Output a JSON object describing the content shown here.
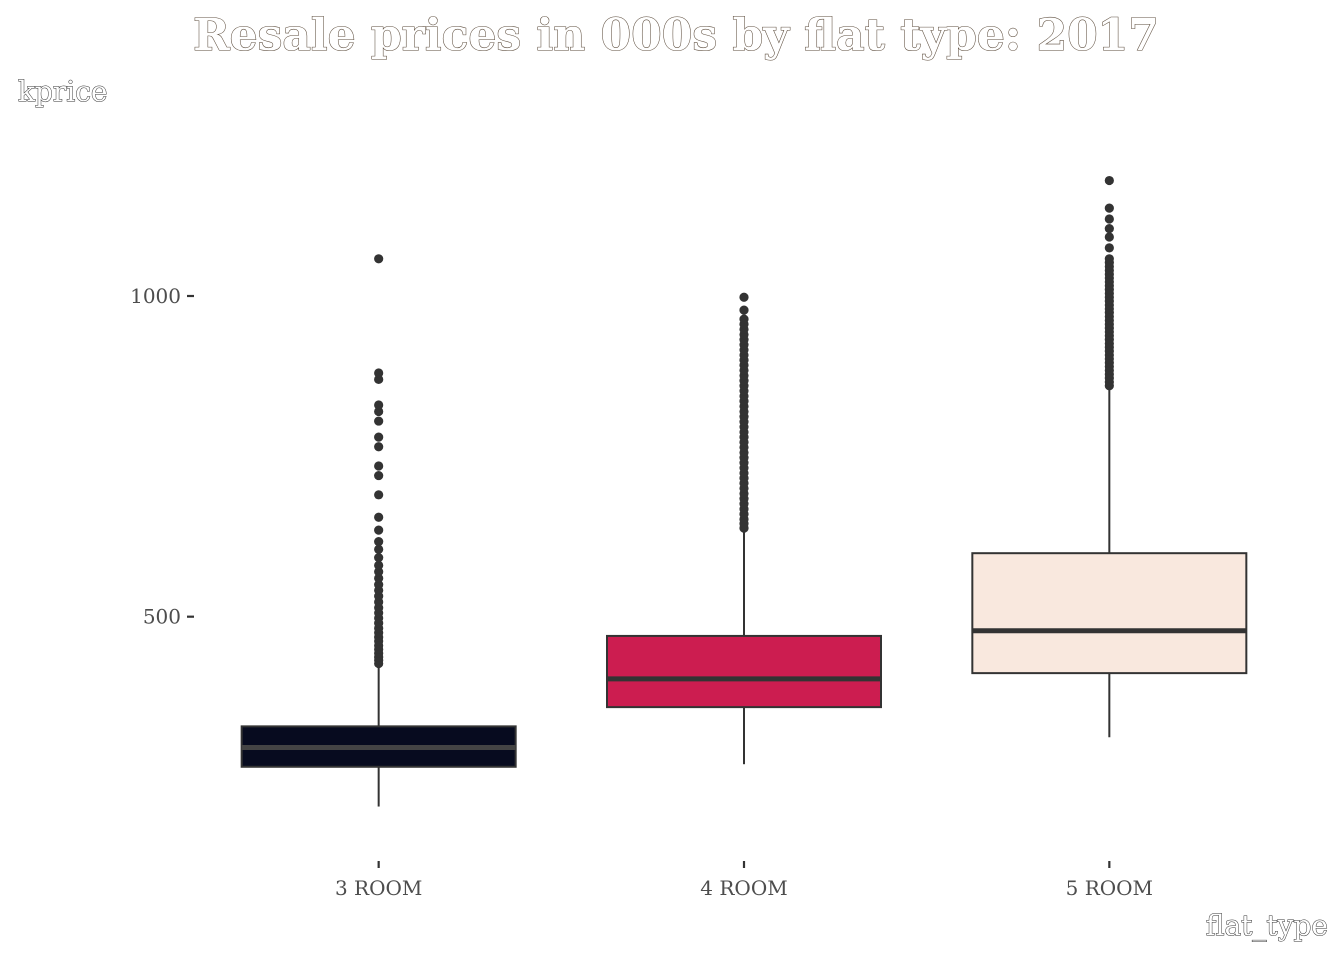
{
  "chart_data": {
    "type": "box",
    "title": "Resale prices in 000s by flat type: 2017",
    "xlabel": "flat_type",
    "ylabel": "kprice",
    "ylim": [
      130,
      1290
    ],
    "yticks": [
      500,
      1000
    ],
    "ytick_labels": [
      "500",
      "1000"
    ],
    "grid": false,
    "legend": "none",
    "categories": [
      "3 ROOM",
      "4 ROOM",
      "5 ROOM"
    ],
    "boxes": [
      {
        "category": "3 ROOM",
        "fill": "#070b1f",
        "median_color": "#444444",
        "lower_whisker": 204,
        "q1": 266,
        "median": 296,
        "q3": 329,
        "upper_whisker": 423,
        "outliers": [
          427,
          432,
          437,
          443,
          449,
          455,
          462,
          468,
          475,
          482,
          490,
          498,
          506,
          514,
          523,
          532,
          541,
          550,
          560,
          570,
          580,
          592,
          605,
          617,
          635,
          655,
          690,
          720,
          735,
          765,
          780,
          805,
          820,
          830,
          870,
          880,
          1058
        ]
      },
      {
        "category": "4 ROOM",
        "fill": "#cc1d50",
        "median_color": "#333333",
        "lower_whisker": 270,
        "q1": 359,
        "median": 403,
        "q3": 470,
        "upper_whisker": 635,
        "outliers": [
          638,
          645,
          652,
          660,
          668,
          676,
          684,
          692,
          700,
          708,
          716,
          724,
          732,
          740,
          748,
          756,
          764,
          772,
          780,
          788,
          796,
          804,
          812,
          820,
          828,
          836,
          844,
          852,
          860,
          868,
          876,
          884,
          892,
          900,
          908,
          916,
          924,
          932,
          940,
          948,
          956,
          964,
          978,
          998
        ]
      },
      {
        "category": "5 ROOM",
        "fill": "#f9e8de",
        "median_color": "#333333",
        "lower_whisker": 312,
        "q1": 412,
        "median": 478,
        "q3": 599,
        "upper_whisker": 857,
        "outliers": [
          860,
          866,
          872,
          878,
          884,
          890,
          896,
          902,
          908,
          914,
          920,
          926,
          932,
          938,
          944,
          950,
          956,
          962,
          968,
          974,
          980,
          986,
          992,
          998,
          1004,
          1010,
          1016,
          1022,
          1028,
          1034,
          1040,
          1046,
          1052,
          1058,
          1075,
          1092,
          1105,
          1120,
          1137,
          1180
        ]
      }
    ]
  }
}
